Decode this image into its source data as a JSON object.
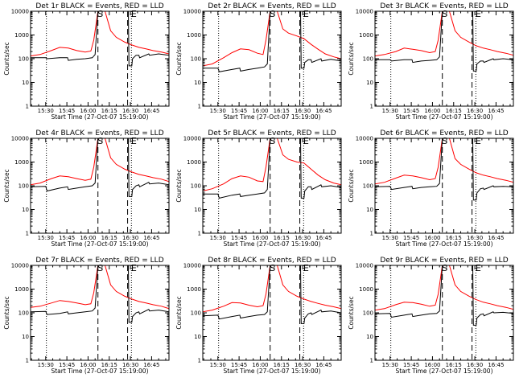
{
  "figure": {
    "x_axis": {
      "tick_labels": [
        "15:30",
        "15:45",
        "16:00",
        "16:15",
        "16:30",
        "16:45"
      ],
      "tick_minutes": [
        930,
        945,
        960,
        975,
        990,
        1005
      ],
      "range_minutes": [
        919.3,
        1017.3
      ],
      "label": "Start Time (27-Oct-07 15:19:00)"
    },
    "y_axis": {
      "label": "Counts/sec",
      "scale": "log",
      "range": [
        1,
        10000
      ],
      "tick_labels": [
        "1",
        "10",
        "100",
        "1000",
        "10000"
      ],
      "tick_values": [
        1,
        10,
        100,
        1000,
        10000
      ]
    },
    "series_colors": {
      "events": "#000000",
      "lld": "#ff0000"
    },
    "marker_labels": {
      "start": "S",
      "end": "E"
    }
  },
  "chart_data": [
    {
      "type": "line",
      "title": "Det 1r BLACK = Events, RED = LLD",
      "dotted_lines_min": [
        930.5,
        990.7
      ],
      "dashed_lines_min": [
        967,
        988
      ],
      "start_marker_min": 967,
      "end_marker_min": 990.7,
      "series": [
        {
          "color": "#ff0000",
          "x": [
            919.3,
            926,
            934,
            940,
            946,
            952,
            958,
            962,
            964,
            967,
            969,
            972,
            976,
            980,
            986,
            991,
            996,
            1001,
            1006,
            1012,
            1017.3
          ],
          "y": [
            130,
            150,
            220,
            300,
            280,
            220,
            190,
            210,
            600,
            10000,
            10000,
            10000,
            1500,
            800,
            500,
            380,
            300,
            260,
            220,
            190,
            160
          ]
        },
        {
          "color": "#000000",
          "x": [
            919.3,
            930,
            931,
            940,
            945.5,
            946,
            952,
            958,
            963,
            965,
            967,
            988.5,
            989,
            991,
            991.5,
            994,
            996,
            996.5,
            1003,
            1003.5,
            1010,
            1017.3
          ],
          "y": [
            110,
            110,
            100,
            110,
            110,
            85,
            95,
            100,
            110,
            150,
            10000,
            10000,
            50,
            50,
            100,
            140,
            140,
            110,
            160,
            140,
            160,
            140
          ]
        }
      ]
    },
    {
      "type": "line",
      "title": "Det 2r BLACK = Events, RED = LLD",
      "dotted_lines_min": [
        930.5,
        990.7
      ],
      "dashed_lines_min": [
        967,
        988
      ],
      "start_marker_min": 967,
      "end_marker_min": 990.7,
      "series": [
        {
          "color": "#ff0000",
          "x": [
            919.3,
            926,
            934,
            940,
            946,
            952,
            958,
            962,
            964,
            967,
            969,
            972,
            976,
            980,
            986,
            991,
            996,
            1001,
            1006,
            1012,
            1017.3
          ],
          "y": [
            50,
            60,
            110,
            180,
            260,
            240,
            170,
            150,
            600,
            10000,
            10000,
            10000,
            1800,
            1200,
            900,
            700,
            400,
            250,
            160,
            120,
            100
          ]
        },
        {
          "color": "#000000",
          "x": [
            919.3,
            930,
            931,
            940,
            945.5,
            946,
            952,
            958,
            963,
            965,
            967,
            988.5,
            989,
            991,
            991.5,
            994,
            996,
            996.5,
            1003,
            1003.5,
            1010,
            1017.3
          ],
          "y": [
            40,
            40,
            28,
            35,
            40,
            30,
            35,
            40,
            45,
            60,
            10000,
            10000,
            40,
            40,
            70,
            90,
            90,
            70,
            100,
            80,
            95,
            80
          ]
        }
      ]
    },
    {
      "type": "line",
      "title": "Det 3r BLACK = Events, RED = LLD",
      "dotted_lines_min": [
        930.5,
        990.7
      ],
      "dashed_lines_min": [
        967,
        988
      ],
      "start_marker_min": 967,
      "end_marker_min": 990.7,
      "series": [
        {
          "color": "#ff0000",
          "x": [
            919.3,
            926,
            934,
            940,
            946,
            952,
            958,
            962,
            964,
            967,
            969,
            972,
            976,
            980,
            986,
            991,
            996,
            1001,
            1006,
            1012,
            1017.3
          ],
          "y": [
            130,
            150,
            200,
            280,
            250,
            220,
            180,
            200,
            600,
            10000,
            10000,
            10000,
            1500,
            800,
            500,
            350,
            280,
            240,
            200,
            170,
            140
          ]
        },
        {
          "color": "#000000",
          "x": [
            919.3,
            930,
            931,
            940,
            945.5,
            946,
            952,
            958,
            963,
            965,
            967,
            988.5,
            989,
            991,
            991.5,
            994,
            996,
            996.5,
            1003,
            1003.5,
            1010,
            1017.3
          ],
          "y": [
            90,
            90,
            80,
            90,
            90,
            70,
            80,
            85,
            90,
            120,
            10000,
            10000,
            30,
            30,
            60,
            80,
            80,
            70,
            100,
            90,
            100,
            90
          ]
        }
      ]
    },
    {
      "type": "line",
      "title": "Det 4r BLACK = Events, RED = LLD",
      "dotted_lines_min": [
        930.5,
        990.7
      ],
      "dashed_lines_min": [
        967,
        988
      ],
      "start_marker_min": 967,
      "end_marker_min": 990.7,
      "series": [
        {
          "color": "#ff0000",
          "x": [
            919.3,
            926,
            934,
            940,
            946,
            952,
            958,
            962,
            964,
            967,
            969,
            972,
            976,
            980,
            986,
            991,
            996,
            1001,
            1006,
            1012,
            1017.3
          ],
          "y": [
            110,
            130,
            200,
            260,
            240,
            200,
            170,
            190,
            600,
            10000,
            10000,
            10000,
            1500,
            800,
            500,
            380,
            300,
            260,
            220,
            190,
            150
          ]
        },
        {
          "color": "#000000",
          "x": [
            919.3,
            930,
            931,
            940,
            945.5,
            946,
            952,
            958,
            963,
            965,
            967,
            988.5,
            989,
            991,
            991.5,
            994,
            996,
            996.5,
            1003,
            1003.5,
            1010,
            1017.3
          ],
          "y": [
            90,
            95,
            60,
            80,
            90,
            70,
            80,
            90,
            100,
            130,
            10000,
            10000,
            35,
            35,
            70,
            100,
            110,
            90,
            140,
            120,
            130,
            110
          ]
        }
      ]
    },
    {
      "type": "line",
      "title": "Det 5r BLACK = Events, RED = LLD",
      "dotted_lines_min": [
        930.5,
        990.7
      ],
      "dashed_lines_min": [
        967,
        988
      ],
      "start_marker_min": 967,
      "end_marker_min": 990.7,
      "series": [
        {
          "color": "#ff0000",
          "x": [
            919.3,
            926,
            934,
            940,
            946,
            952,
            958,
            962,
            964,
            967,
            969,
            972,
            976,
            980,
            986,
            991,
            996,
            1001,
            1006,
            1012,
            1017.3
          ],
          "y": [
            60,
            75,
            120,
            200,
            260,
            230,
            160,
            150,
            600,
            10000,
            10000,
            10000,
            2000,
            1300,
            1000,
            900,
            500,
            280,
            180,
            130,
            110
          ]
        },
        {
          "color": "#000000",
          "x": [
            919.3,
            930,
            931,
            940,
            945.5,
            946,
            952,
            958,
            963,
            965,
            967,
            988.5,
            989,
            991,
            991.5,
            994,
            996,
            996.5,
            1003,
            1003.5,
            1010,
            1017.3
          ],
          "y": [
            45,
            45,
            30,
            40,
            45,
            35,
            40,
            45,
            50,
            70,
            10000,
            10000,
            30,
            30,
            60,
            90,
            90,
            70,
            110,
            90,
            100,
            85
          ]
        }
      ]
    },
    {
      "type": "line",
      "title": "Det 6r BLACK = Events, RED = LLD",
      "dotted_lines_min": [
        930.5,
        990.7
      ],
      "dashed_lines_min": [
        967,
        988
      ],
      "start_marker_min": 967,
      "end_marker_min": 990.7,
      "series": [
        {
          "color": "#ff0000",
          "x": [
            919.3,
            926,
            934,
            940,
            946,
            952,
            958,
            962,
            964,
            967,
            969,
            972,
            976,
            980,
            986,
            991,
            996,
            1001,
            1006,
            1012,
            1017.3
          ],
          "y": [
            120,
            140,
            210,
            280,
            260,
            220,
            180,
            200,
            600,
            10000,
            10000,
            10000,
            1400,
            800,
            500,
            350,
            280,
            240,
            200,
            170,
            140
          ]
        },
        {
          "color": "#000000",
          "x": [
            919.3,
            930,
            931,
            940,
            945.5,
            946,
            952,
            958,
            963,
            965,
            967,
            988.5,
            989,
            991,
            991.5,
            994,
            996,
            996.5,
            1003,
            1003.5,
            1010,
            1017.3
          ],
          "y": [
            90,
            95,
            70,
            85,
            95,
            75,
            85,
            90,
            95,
            125,
            10000,
            10000,
            25,
            25,
            50,
            75,
            80,
            70,
            100,
            90,
            95,
            90
          ]
        }
      ]
    },
    {
      "type": "line",
      "title": "Det 7r BLACK = Events, RED = LLD",
      "dotted_lines_min": [
        930.5,
        990.7
      ],
      "dashed_lines_min": [
        967,
        988
      ],
      "start_marker_min": 967,
      "end_marker_min": 990.7,
      "series": [
        {
          "color": "#ff0000",
          "x": [
            919.3,
            926,
            934,
            940,
            946,
            952,
            958,
            962,
            964,
            967,
            969,
            972,
            976,
            980,
            986,
            991,
            996,
            1001,
            1006,
            1012,
            1017.3
          ],
          "y": [
            170,
            190,
            260,
            330,
            300,
            260,
            220,
            240,
            700,
            10000,
            10000,
            10000,
            1500,
            800,
            500,
            380,
            300,
            260,
            220,
            190,
            150
          ]
        },
        {
          "color": "#000000",
          "x": [
            919.3,
            930,
            931,
            940,
            945.5,
            946,
            952,
            958,
            963,
            965,
            967,
            988.5,
            989,
            991,
            991.5,
            994,
            996,
            996.5,
            1003,
            1003.5,
            1010,
            1017.3
          ],
          "y": [
            110,
            115,
            85,
            95,
            110,
            90,
            100,
            110,
            120,
            160,
            10000,
            10000,
            40,
            40,
            70,
            100,
            110,
            90,
            140,
            120,
            130,
            110
          ]
        }
      ]
    },
    {
      "type": "line",
      "title": "Det 8r BLACK = Events, RED = LLD",
      "dotted_lines_min": [
        930.5,
        990.7
      ],
      "dashed_lines_min": [
        967,
        988
      ],
      "start_marker_min": 967,
      "end_marker_min": 990.7,
      "series": [
        {
          "color": "#ff0000",
          "x": [
            919.3,
            926,
            934,
            940,
            946,
            952,
            958,
            962,
            964,
            967,
            969,
            972,
            976,
            980,
            986,
            991,
            996,
            1001,
            1006,
            1012,
            1017.3
          ],
          "y": [
            110,
            130,
            190,
            270,
            260,
            210,
            180,
            200,
            600,
            10000,
            10000,
            10000,
            1500,
            800,
            500,
            380,
            300,
            250,
            210,
            180,
            150
          ]
        },
        {
          "color": "#000000",
          "x": [
            919.3,
            930,
            931,
            940,
            945.5,
            946,
            952,
            958,
            963,
            965,
            967,
            988.5,
            989,
            991,
            991.5,
            994,
            996,
            996.5,
            1003,
            1003.5,
            1010,
            1017.3
          ],
          "y": [
            75,
            80,
            55,
            70,
            80,
            60,
            70,
            80,
            85,
            110,
            10000,
            10000,
            35,
            35,
            60,
            90,
            100,
            85,
            130,
            110,
            120,
            100
          ]
        }
      ]
    },
    {
      "type": "line",
      "title": "Det 9r BLACK = Events, RED = LLD",
      "dotted_lines_min": [
        930.5,
        990.7
      ],
      "dashed_lines_min": [
        967,
        988
      ],
      "start_marker_min": 967,
      "end_marker_min": 990.7,
      "series": [
        {
          "color": "#ff0000",
          "x": [
            919.3,
            926,
            934,
            940,
            946,
            952,
            958,
            962,
            964,
            967,
            969,
            972,
            976,
            980,
            986,
            991,
            996,
            1001,
            1006,
            1012,
            1017.3
          ],
          "y": [
            130,
            150,
            220,
            280,
            270,
            230,
            190,
            210,
            600,
            10000,
            10000,
            10000,
            1500,
            800,
            500,
            360,
            280,
            240,
            200,
            170,
            140
          ]
        },
        {
          "color": "#000000",
          "x": [
            919.3,
            930,
            931,
            940,
            945.5,
            946,
            952,
            958,
            963,
            965,
            967,
            988.5,
            989,
            991,
            991.5,
            994,
            996,
            996.5,
            1003,
            1003.5,
            1010,
            1017.3
          ],
          "y": [
            90,
            95,
            65,
            80,
            90,
            70,
            80,
            90,
            95,
            120,
            10000,
            10000,
            30,
            30,
            60,
            85,
            90,
            75,
            110,
            100,
            105,
            95
          ]
        }
      ]
    }
  ]
}
